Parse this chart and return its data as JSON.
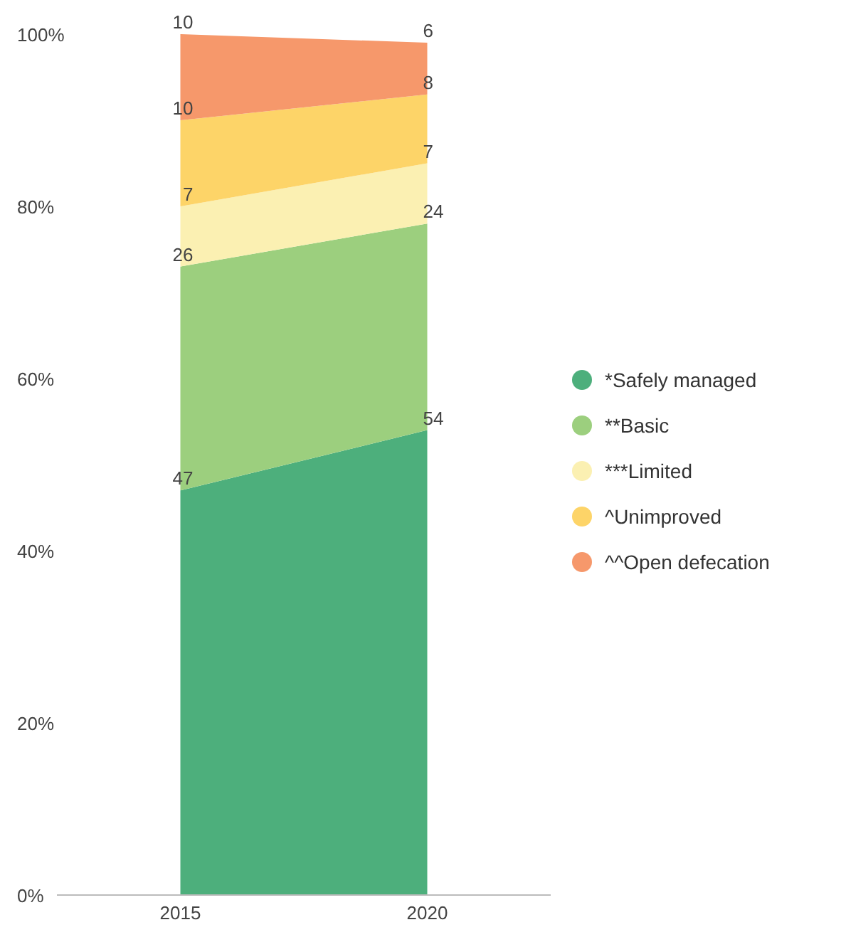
{
  "chart_data": {
    "type": "area",
    "stacked": true,
    "data_labels": true,
    "legend": "right",
    "categories": [
      "2015",
      "2020"
    ],
    "series": [
      {
        "name": "*Safely managed",
        "color": "#4daf7c",
        "values": [
          47,
          54
        ]
      },
      {
        "name": "**Basic",
        "color": "#9ccf7e",
        "values": [
          26,
          24
        ]
      },
      {
        "name": "***Limited",
        "color": "#fbf0b2",
        "values": [
          7,
          7
        ]
      },
      {
        "name": "^Unimproved",
        "color": "#fdd468",
        "values": [
          10,
          8
        ]
      },
      {
        "name": "^^Open defecation",
        "color": "#f6986b",
        "values": [
          10,
          6
        ]
      }
    ],
    "ylim": [
      0,
      100
    ],
    "yticks": [
      {
        "value": 0,
        "label": "0%"
      },
      {
        "value": 20,
        "label": "20%"
      },
      {
        "value": 40,
        "label": "40%"
      },
      {
        "value": 60,
        "label": "60%"
      },
      {
        "value": 80,
        "label": "80%"
      },
      {
        "value": 100,
        "label": "100%"
      }
    ]
  }
}
